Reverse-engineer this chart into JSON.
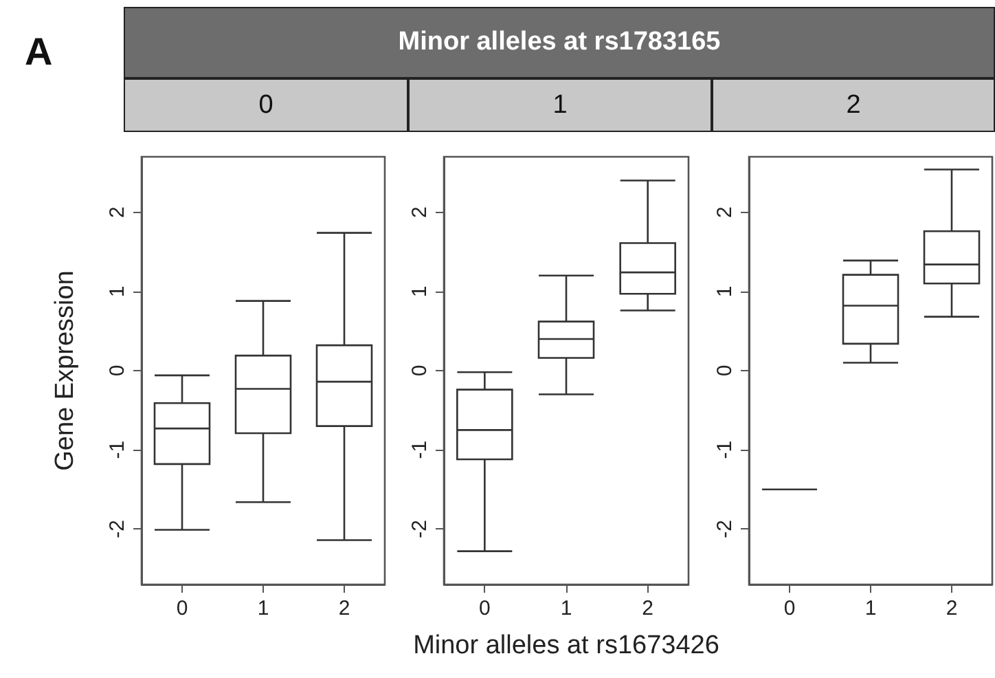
{
  "chart_data": [
    {
      "type": "box",
      "title": "0",
      "ylabel": "Gene Expression",
      "annotations": [
        "A",
        "Minor alleles at rs1783165"
      ],
      "categories": [
        "0",
        "1",
        "2"
      ],
      "ylim": [
        -2.7,
        2.7
      ],
      "yticks": [
        -2,
        -1,
        0,
        1,
        2
      ],
      "grid": false,
      "boxes": [
        {
          "low": -2.01,
          "q1": -1.18,
          "median": -0.73,
          "q3": -0.41,
          "high": -0.06
        },
        {
          "low": -1.66,
          "q1": -0.79,
          "median": -0.23,
          "q3": 0.19,
          "high": 0.88
        },
        {
          "low": -2.14,
          "q1": -0.7,
          "median": -0.14,
          "q3": 0.32,
          "high": 1.74
        }
      ]
    },
    {
      "type": "box",
      "title": "1",
      "xlabel": "Minor alleles at rs1673426",
      "categories": [
        "0",
        "1",
        "2"
      ],
      "ylim": [
        -2.7,
        2.7
      ],
      "yticks": [
        -2,
        -1,
        0,
        1,
        2
      ],
      "grid": false,
      "boxes": [
        {
          "low": -2.28,
          "q1": -1.12,
          "median": -0.75,
          "q3": -0.24,
          "high": -0.02
        },
        {
          "low": -0.3,
          "q1": 0.16,
          "median": 0.4,
          "q3": 0.62,
          "high": 1.2
        },
        {
          "low": 0.76,
          "q1": 0.97,
          "median": 1.24,
          "q3": 1.61,
          "high": 2.4
        }
      ]
    },
    {
      "type": "box",
      "title": "2",
      "categories": [
        "0",
        "1",
        "2"
      ],
      "ylim": [
        -2.7,
        2.7
      ],
      "yticks": [
        -2,
        -1,
        0,
        1,
        2
      ],
      "grid": false,
      "boxes": [
        {
          "low": -1.5,
          "q1": -1.5,
          "median": -1.5,
          "q3": -1.5,
          "high": -1.5
        },
        {
          "low": 0.1,
          "q1": 0.34,
          "median": 0.82,
          "q3": 1.21,
          "high": 1.39
        },
        {
          "low": 0.68,
          "q1": 1.1,
          "median": 1.34,
          "q3": 1.76,
          "high": 2.54
        }
      ]
    }
  ]
}
